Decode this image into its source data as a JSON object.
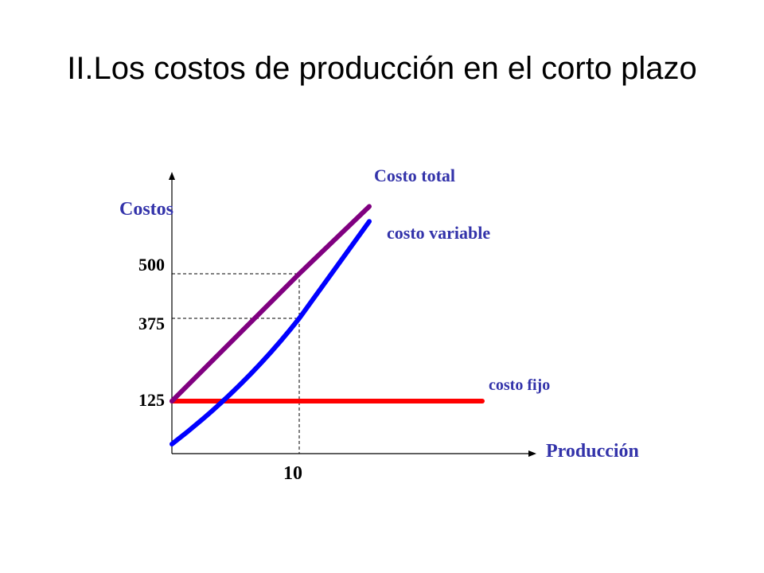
{
  "slide": {
    "title": "II.Los costos de producción en el corto plazo"
  },
  "chart_data": {
    "type": "line",
    "xlabel": "Producción",
    "ylabel": "Costos",
    "x_ticks": [
      "10"
    ],
    "y_ticks": [
      "500",
      "375",
      "125"
    ],
    "reference_x": 10,
    "reference_y": [
      375,
      500
    ],
    "series": [
      {
        "name": "Costo total",
        "color": "#800080",
        "x": [
          0,
          10,
          15
        ],
        "y": [
          125,
          500,
          680
        ]
      },
      {
        "name": "costo variable",
        "color": "#0000ff",
        "x": [
          0,
          10,
          15
        ],
        "y": [
          0,
          375,
          640
        ]
      },
      {
        "name": "costo fijo",
        "color": "#ff0000",
        "x": [
          0,
          25
        ],
        "y": [
          125,
          125
        ]
      }
    ]
  }
}
